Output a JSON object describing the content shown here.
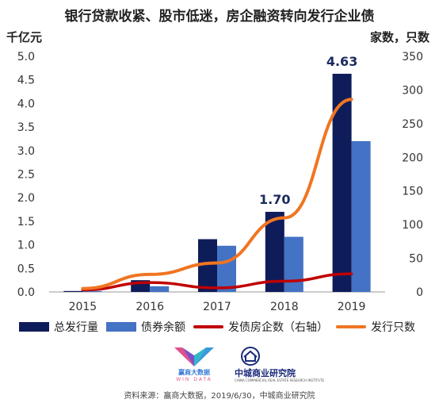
{
  "title": "银行贷款收紧、股市低迷，房企融资转向发行企业债",
  "left_unit": "千亿元",
  "right_unit": "家数，只数",
  "source": "资料来源：赢商大数据，2019/6/30，中城商业研究院",
  "logos": {
    "winshang_text": "赢商大数据",
    "winshang_sub": "WIN DATA",
    "zhongcheng_text": "中城商业研究院",
    "zhongcheng_sub": "CHINA COMMERCIAL REAL ESTATE RESEARCH INSTITUTE"
  },
  "colors": {
    "dark_bar": "#0f1c5a",
    "light_bar": "#4472c4",
    "red_line": "#c00000",
    "orange_line": "#f07522"
  },
  "chart_data": {
    "type": "bar",
    "categories": [
      "2015",
      "2016",
      "2017",
      "2018",
      "2019"
    ],
    "y_left": {
      "ylim": [
        0,
        5.0
      ],
      "ticks": [
        "0.0",
        "0.5",
        "1.0",
        "1.5",
        "2.0",
        "2.5",
        "3.0",
        "3.5",
        "4.0",
        "4.5",
        "5.0"
      ]
    },
    "y_right": {
      "ylim": [
        0,
        350
      ],
      "ticks": [
        "0",
        "50",
        "100",
        "150",
        "200",
        "250",
        "300",
        "350"
      ]
    },
    "series": [
      {
        "name": "总发行量",
        "kind": "bar",
        "axis": "left",
        "values": [
          0.02,
          0.25,
          1.12,
          1.7,
          4.63
        ]
      },
      {
        "name": "债券余额",
        "kind": "bar",
        "axis": "left",
        "values": [
          0.02,
          0.12,
          0.98,
          1.17,
          3.2
        ]
      },
      {
        "name": "发债房企数（右轴）",
        "kind": "line",
        "axis": "right",
        "values": [
          3,
          14,
          6,
          16,
          27
        ]
      },
      {
        "name": "发行只数",
        "kind": "line",
        "axis": "right",
        "values": [
          5,
          26,
          43,
          110,
          286
        ]
      }
    ],
    "data_labels": [
      {
        "category": "2018",
        "text": "1.70"
      },
      {
        "category": "2019",
        "text": "4.63"
      }
    ],
    "grid": false,
    "legend_position": "bottom"
  }
}
